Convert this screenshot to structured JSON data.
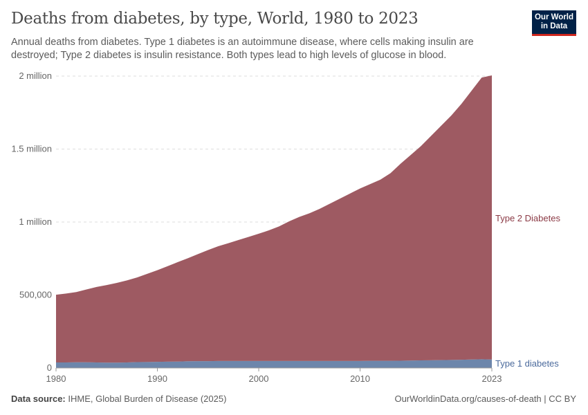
{
  "title": "Deaths from diabetes, by type, World, 1980 to 2023",
  "subtitle": "Annual deaths from diabetes. Type 1 diabetes is an autoimmune disease, where cells making insulin are destroyed; Type 2 diabetes is insulin resistance. Both types lead to high levels of glucose in blood.",
  "logo": {
    "line1": "Our World",
    "line2": "in Data"
  },
  "footer": {
    "source_label": "Data source:",
    "source": "IHME, Global Burden of Disease (2025)",
    "right": "OurWorldinData.org/causes-of-death | CC BY"
  },
  "chart_data": {
    "type": "area",
    "stacked": true,
    "title": "Deaths from diabetes, by type, World, 1980 to 2023",
    "xlim": [
      1980,
      2023
    ],
    "ylim": [
      0,
      2000000
    ],
    "x_ticks": [
      1980,
      1990,
      2000,
      2010,
      2023
    ],
    "y_ticks": [
      {
        "value": 0,
        "label": "0"
      },
      {
        "value": 500000,
        "label": "500,000"
      },
      {
        "value": 1000000,
        "label": "1 million"
      },
      {
        "value": 1500000,
        "label": "1.5 million"
      },
      {
        "value": 2000000,
        "label": "2 million"
      }
    ],
    "grid": "horizontal dashed",
    "legend": "right (inline labels)",
    "x": [
      1980,
      1981,
      1982,
      1983,
      1984,
      1985,
      1986,
      1987,
      1988,
      1989,
      1990,
      1991,
      1992,
      1993,
      1994,
      1995,
      1996,
      1997,
      1998,
      1999,
      2000,
      2001,
      2002,
      2003,
      2004,
      2005,
      2006,
      2007,
      2008,
      2009,
      2010,
      2011,
      2012,
      2013,
      2014,
      2015,
      2016,
      2017,
      2018,
      2019,
      2020,
      2021,
      2022,
      2023
    ],
    "series": [
      {
        "name": "Type 1 diabetes",
        "color": "#6d86ab",
        "label_color": "#4b6a9c",
        "values": [
          38000,
          38000,
          39000,
          39000,
          38000,
          37000,
          37000,
          38000,
          40000,
          41000,
          42000,
          43000,
          44000,
          46000,
          47000,
          47000,
          48000,
          48000,
          48000,
          48000,
          48000,
          48000,
          48000,
          48000,
          48000,
          48000,
          48000,
          48000,
          48000,
          48000,
          48000,
          49000,
          49000,
          49000,
          50000,
          51000,
          52000,
          53000,
          54000,
          55000,
          56000,
          58000,
          60000,
          58000
        ]
      },
      {
        "name": "Type 2 Diabetes",
        "color": "#9e5a62",
        "label_color": "#8b3a45",
        "values": [
          464000,
          472000,
          481000,
          499000,
          517000,
          531000,
          546000,
          562000,
          580000,
          604000,
          628000,
          654000,
          681000,
          706000,
          733000,
          761000,
          786000,
          807000,
          829000,
          850000,
          872000,
          895000,
          922000,
          957000,
          987000,
          1012000,
          1042000,
          1077000,
          1112000,
          1147000,
          1182000,
          1211000,
          1241000,
          1286000,
          1350000,
          1409000,
          1468000,
          1537000,
          1606000,
          1675000,
          1754000,
          1842000,
          1930000,
          1947000
        ]
      }
    ]
  }
}
